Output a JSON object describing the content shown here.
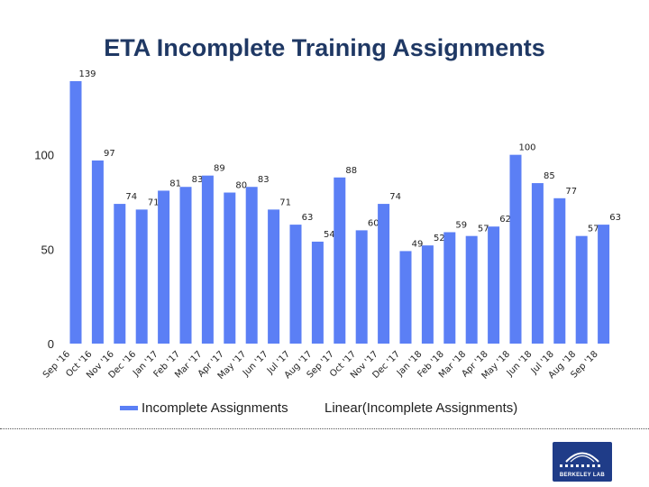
{
  "logo_text": "BERKELEY LAB",
  "chart_data": {
    "type": "bar",
    "title": "ETA Incomplete Training Assignments",
    "categories": [
      "Sep '16",
      "Oct '16",
      "Nov '16",
      "Dec '16",
      "Jan '17",
      "Feb '17",
      "Mar '17",
      "Apr '17",
      "May '17",
      "Jun '17",
      "Jul '17",
      "Aug '17",
      "Sep '17",
      "Oct '17",
      "Nov '17",
      "Dec '17",
      "Jan '18",
      "Feb '18",
      "Mar '18",
      "Apr '18",
      "May '18",
      "Jun '18",
      "Jul '18",
      "Aug '18",
      "Sep '18"
    ],
    "series": [
      {
        "name": "Incomplete Assignments",
        "color": "#5b7ff5",
        "values": [
          139,
          97,
          74,
          71,
          81,
          83,
          89,
          80,
          83,
          71,
          63,
          54,
          88,
          60,
          74,
          49,
          52,
          59,
          57,
          62,
          100,
          85,
          77,
          57,
          63
        ]
      }
    ],
    "trendline_legend": "Linear(Incomplete Assignments)",
    "ylim": [
      0,
      139
    ],
    "yticks": [
      0,
      50,
      100
    ],
    "xlabel": "",
    "ylabel": "",
    "grid": false,
    "legend_position": "bottom"
  }
}
